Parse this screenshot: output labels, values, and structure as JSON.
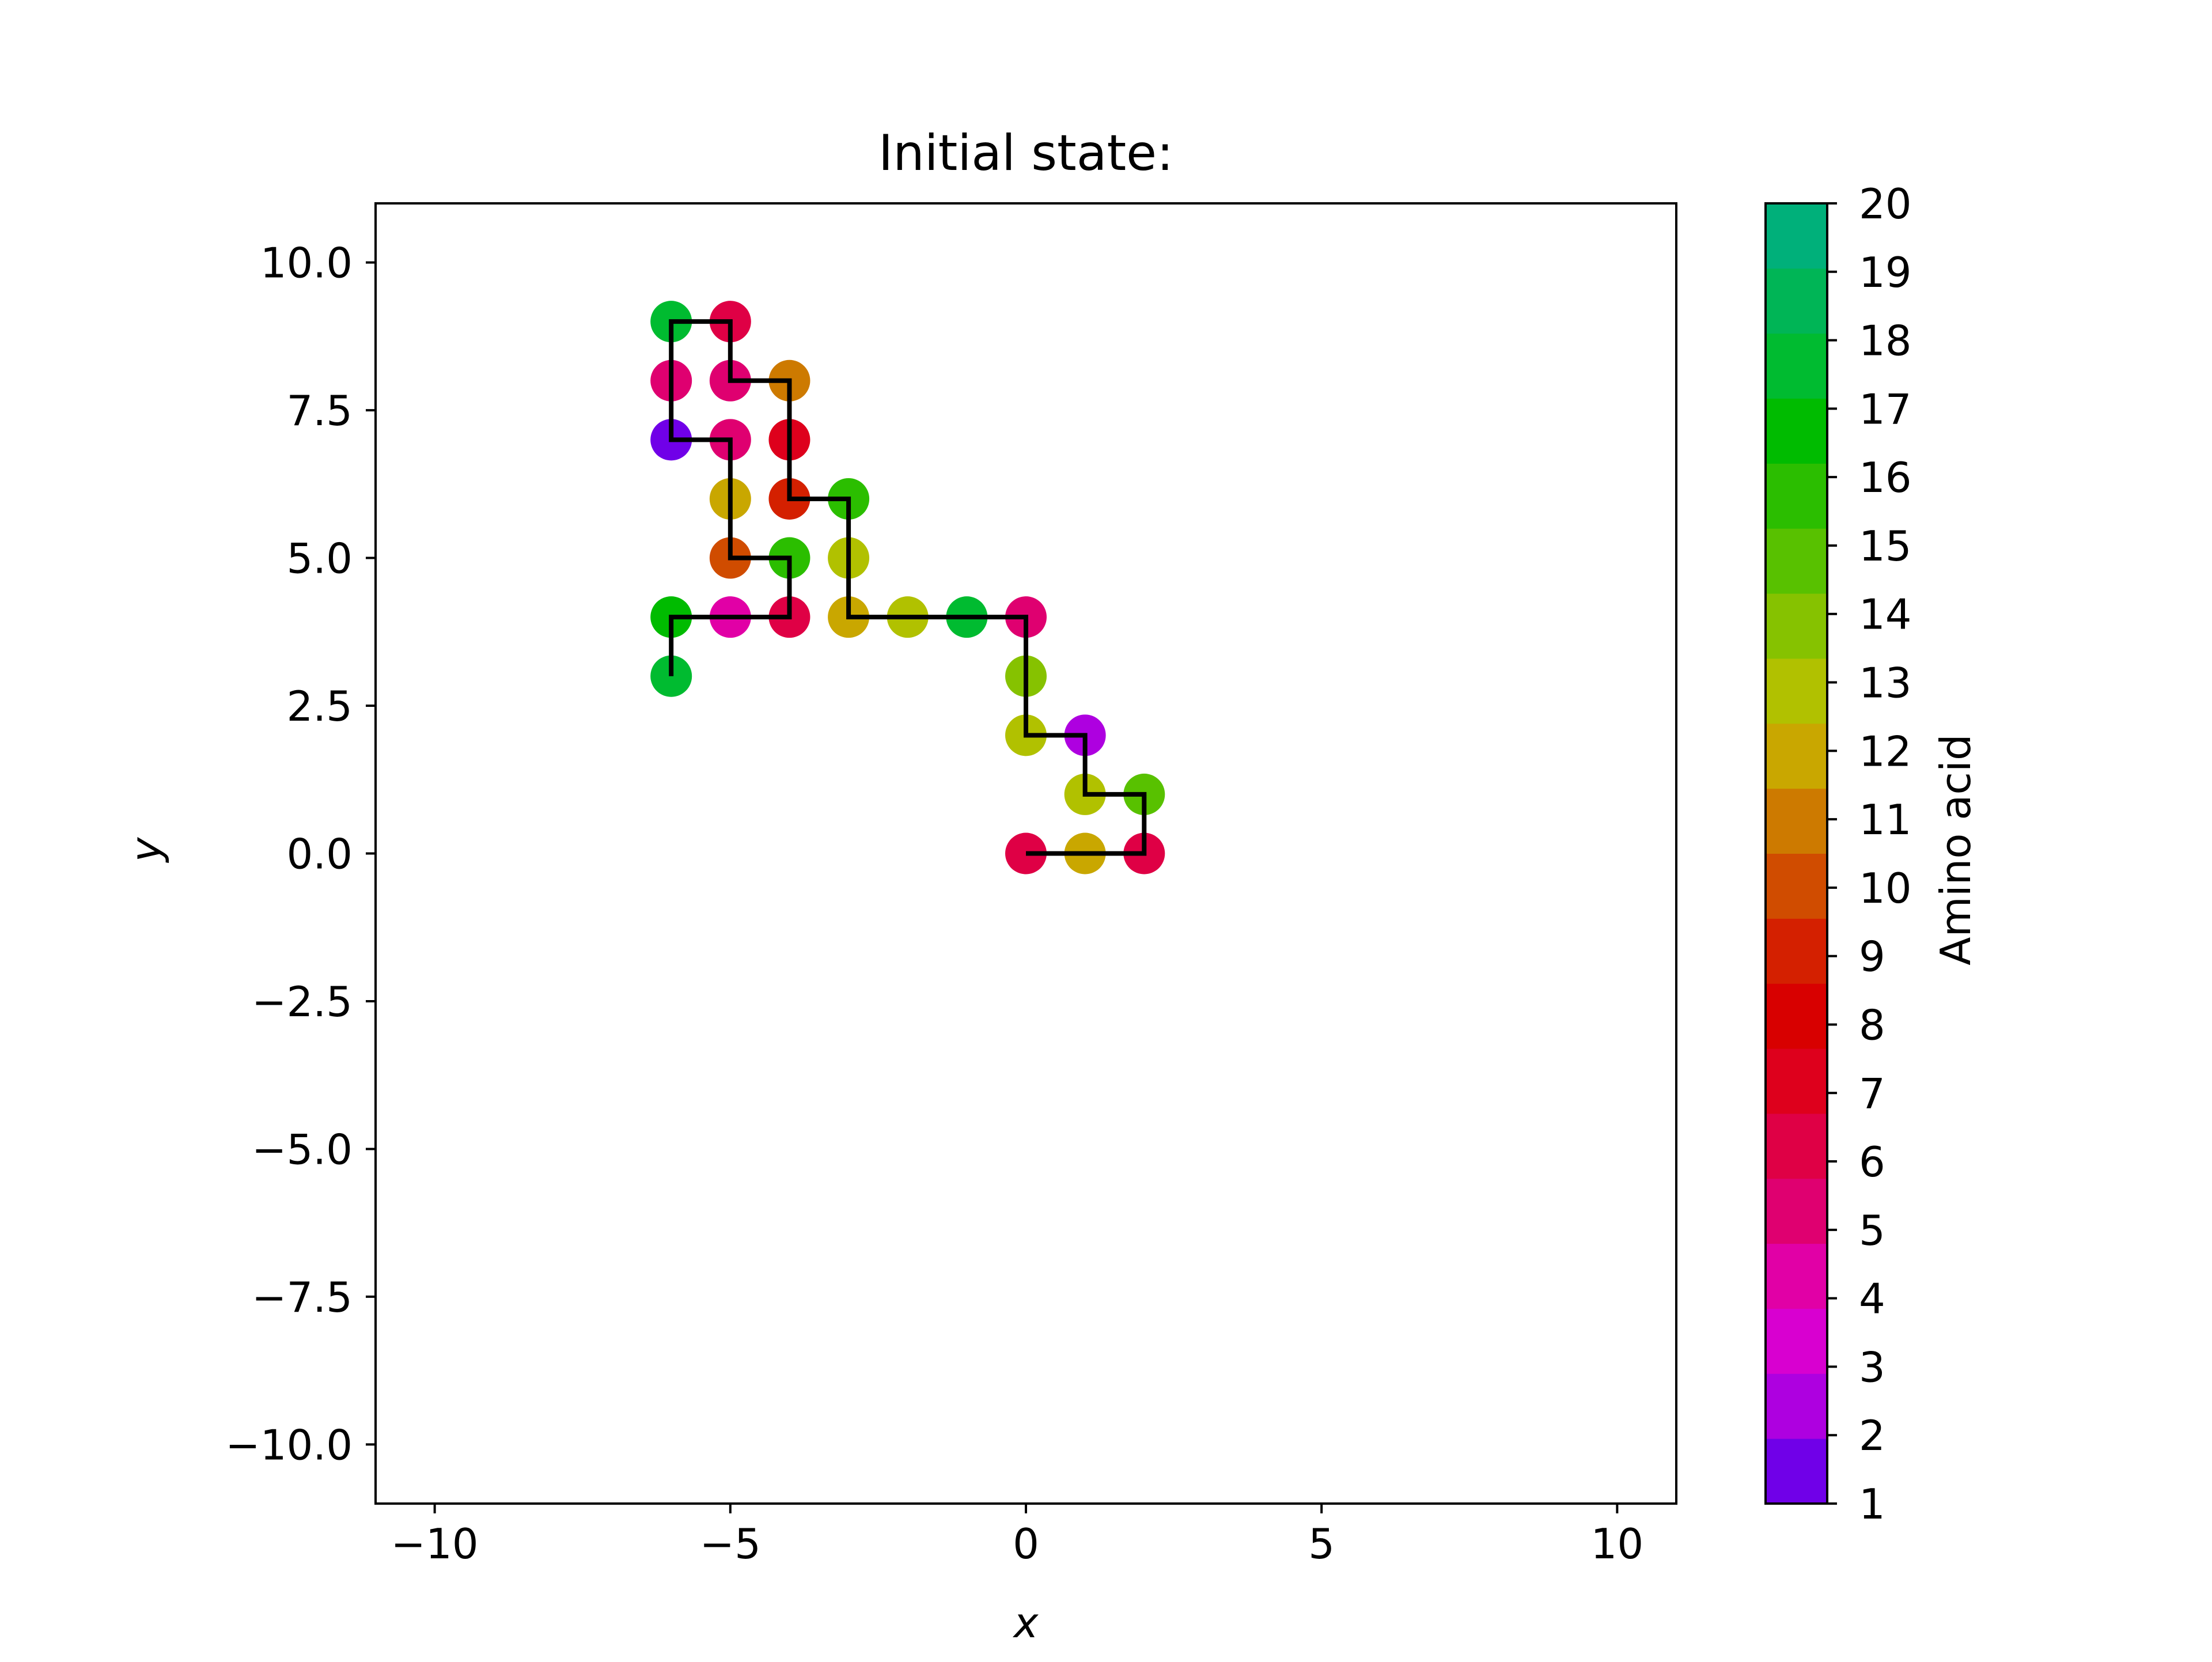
{
  "chart_data": {
    "type": "scatter",
    "title": "Initial state:",
    "xlabel": "x",
    "ylabel": "y",
    "xlim": [
      -11,
      11
    ],
    "ylim": [
      -11,
      11
    ],
    "xticks": [
      -10,
      -5,
      0,
      5,
      10
    ],
    "xtick_labels": [
      "−10",
      "−5",
      "0",
      "5",
      "10"
    ],
    "yticks": [
      10.0,
      7.5,
      5.0,
      2.5,
      0.0,
      -2.5,
      -5.0,
      -7.5,
      -10.0
    ],
    "ytick_labels": [
      "10.0",
      "7.5",
      "5.0",
      "2.5",
      "0.0",
      "−2.5",
      "−5.0",
      "−7.5",
      "−10.0"
    ],
    "grid": false,
    "path_color": "#000000",
    "points": [
      {
        "x": 0,
        "y": 0,
        "amino_acid": 6
      },
      {
        "x": 1,
        "y": 0,
        "amino_acid": 12
      },
      {
        "x": 2,
        "y": 0,
        "amino_acid": 6
      },
      {
        "x": 2,
        "y": 1,
        "amino_acid": 15
      },
      {
        "x": 1,
        "y": 1,
        "amino_acid": 13
      },
      {
        "x": 1,
        "y": 2,
        "amino_acid": 2
      },
      {
        "x": 0,
        "y": 2,
        "amino_acid": 13
      },
      {
        "x": 0,
        "y": 3,
        "amino_acid": 14
      },
      {
        "x": 0,
        "y": 4,
        "amino_acid": 5
      },
      {
        "x": -1,
        "y": 4,
        "amino_acid": 18
      },
      {
        "x": -2,
        "y": 4,
        "amino_acid": 13
      },
      {
        "x": -3,
        "y": 4,
        "amino_acid": 12
      },
      {
        "x": -3,
        "y": 5,
        "amino_acid": 13
      },
      {
        "x": -3,
        "y": 6,
        "amino_acid": 16
      },
      {
        "x": -4,
        "y": 6,
        "amino_acid": 9
      },
      {
        "x": -4,
        "y": 7,
        "amino_acid": 7
      },
      {
        "x": -4,
        "y": 8,
        "amino_acid": 11
      },
      {
        "x": -5,
        "y": 8,
        "amino_acid": 5
      },
      {
        "x": -5,
        "y": 9,
        "amino_acid": 6
      },
      {
        "x": -6,
        "y": 9,
        "amino_acid": 18
      },
      {
        "x": -6,
        "y": 8,
        "amino_acid": 5
      },
      {
        "x": -6,
        "y": 7,
        "amino_acid": 1
      },
      {
        "x": -5,
        "y": 7,
        "amino_acid": 5
      },
      {
        "x": -5,
        "y": 6,
        "amino_acid": 12
      },
      {
        "x": -5,
        "y": 5,
        "amino_acid": 10
      },
      {
        "x": -4,
        "y": 5,
        "amino_acid": 16
      },
      {
        "x": -4,
        "y": 4,
        "amino_acid": 6
      },
      {
        "x": -5,
        "y": 4,
        "amino_acid": 4
      },
      {
        "x": -6,
        "y": 4,
        "amino_acid": 17
      },
      {
        "x": -6,
        "y": 3,
        "amino_acid": 18
      }
    ],
    "colorbar": {
      "label": "Amino acid",
      "min": 1,
      "max": 20,
      "ticks": [
        "1",
        "2",
        "3",
        "4",
        "5",
        "6",
        "7",
        "8",
        "9",
        "10",
        "11",
        "12",
        "13",
        "14",
        "15",
        "16",
        "17",
        "18",
        "19",
        "20"
      ],
      "colors": [
        "#7000e8",
        "#ae00e0",
        "#d800d0",
        "#e100a6",
        "#df0070",
        "#df0045",
        "#de001c",
        "#d80000",
        "#d42000",
        "#d04c00",
        "#cd7a00",
        "#c9a700",
        "#b1c100",
        "#86c200",
        "#58c100",
        "#2bbe00",
        "#00bb00",
        "#00bb30",
        "#00b556",
        "#00b07a"
      ]
    }
  }
}
